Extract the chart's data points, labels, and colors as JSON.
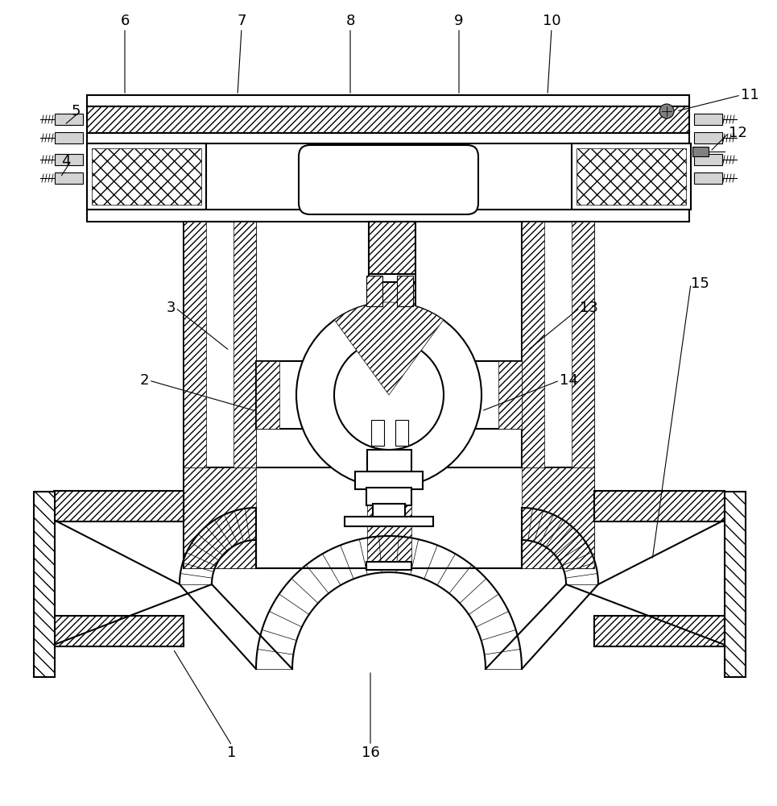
{
  "background_color": "#ffffff",
  "line_color": "#000000",
  "fig_width": 9.65,
  "fig_height": 10.0,
  "lw": 1.5,
  "thin_lw": 0.7,
  "label_fontsize": 13
}
